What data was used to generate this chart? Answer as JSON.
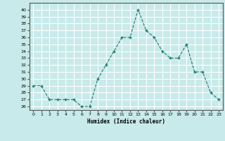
{
  "x": [
    0,
    1,
    2,
    3,
    4,
    5,
    6,
    7,
    8,
    9,
    10,
    11,
    12,
    13,
    14,
    15,
    16,
    17,
    18,
    19,
    20,
    21,
    22,
    23
  ],
  "y": [
    29,
    29,
    27,
    27,
    27,
    27,
    26,
    26,
    30,
    32,
    34,
    36,
    36,
    40,
    37,
    36,
    34,
    33,
    33,
    35,
    31,
    31,
    28,
    27
  ],
  "line_color": "#1a7a6e",
  "marker": "+",
  "marker_size": 3,
  "bg_color": "#c8eaea",
  "grid_color": "#ffffff",
  "title": "",
  "xlabel": "Humidex (Indice chaleur)",
  "ylabel": "",
  "ylim": [
    25.5,
    41
  ],
  "xlim": [
    -0.5,
    23.5
  ],
  "yticks": [
    26,
    27,
    28,
    29,
    30,
    31,
    32,
    33,
    34,
    35,
    36,
    37,
    38,
    39,
    40
  ],
  "xticks": [
    0,
    1,
    2,
    3,
    4,
    5,
    6,
    7,
    8,
    9,
    10,
    11,
    12,
    13,
    14,
    15,
    16,
    17,
    18,
    19,
    20,
    21,
    22,
    23
  ]
}
